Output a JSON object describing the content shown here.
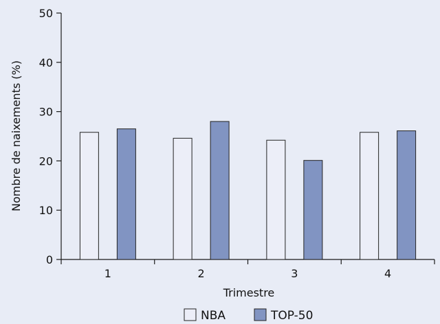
{
  "chart_data": {
    "type": "bar",
    "categories": [
      "1",
      "2",
      "3",
      "4"
    ],
    "series": [
      {
        "name": "NBA",
        "values": [
          25.8,
          24.6,
          24.2,
          25.8
        ],
        "color": "#eceef8"
      },
      {
        "name": "TOP-50",
        "values": [
          26.5,
          28.0,
          20.1,
          26.1
        ],
        "color": "#8194c2"
      }
    ],
    "xlabel": "Trimestre",
    "ylabel": "Nombre de naixements (%)",
    "ylim": [
      0,
      50
    ],
    "yticks": [
      "0",
      "10",
      "20",
      "30",
      "40",
      "50"
    ],
    "grid": false,
    "legend_position": "bottom"
  }
}
